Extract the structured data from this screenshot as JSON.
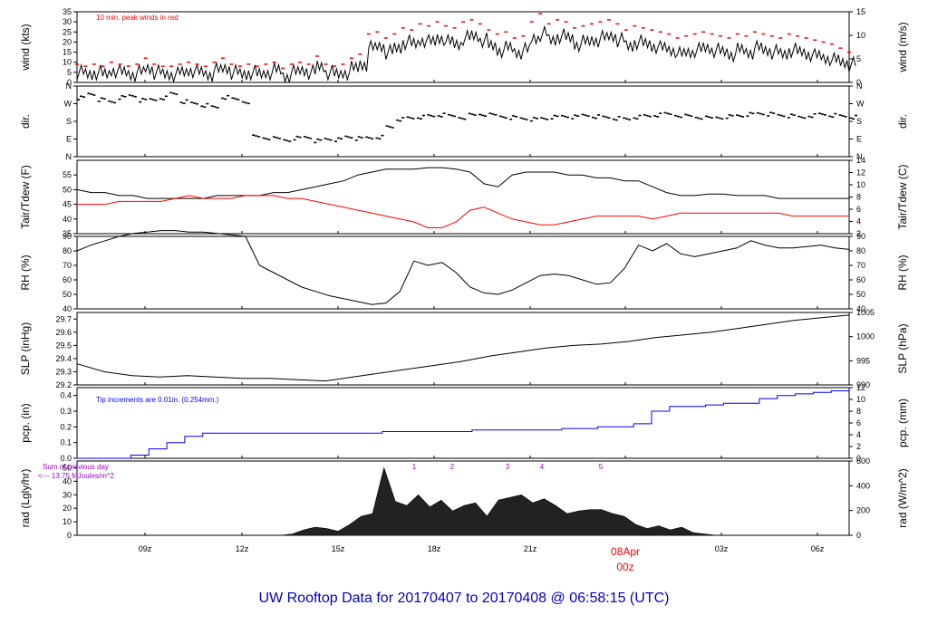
{
  "title": "UW Rooftop Data for 20170407  to  20170408 @ 06:58:15  (UTC)",
  "colors": {
    "main": "#000000",
    "red": "#ff0000",
    "blue": "#0000ff",
    "purple": "#9900cc",
    "title": "#0000cc"
  },
  "x_axis": {
    "ticks": [
      "09z",
      "12z",
      "15z",
      "18z",
      "21z",
      "00z",
      "03z",
      "06z"
    ],
    "day_label": "08Apr",
    "midnight_label": "00z"
  },
  "chart_data": [
    {
      "type": "line",
      "id": "wind",
      "ylabel": "wind (kts)",
      "ylabel_right": "wind (m/s)",
      "ylim": [
        0,
        35
      ],
      "yticks": [
        "0",
        "5",
        "10",
        "15",
        "20",
        "25",
        "30",
        "35"
      ],
      "yticks_right": [
        "0",
        "5",
        "10",
        "15"
      ],
      "annotation": "10 min. peak winds in red",
      "series": [
        {
          "values": [
            5,
            4,
            5,
            4,
            6,
            5,
            4,
            5,
            7,
            5,
            4,
            4,
            5,
            6,
            5,
            4,
            6,
            7,
            5,
            4,
            5,
            4,
            5,
            6,
            3,
            5,
            6,
            5,
            8,
            5,
            4,
            5,
            7,
            9,
            17,
            18,
            15,
            17,
            20,
            19,
            21,
            20,
            22,
            20,
            19,
            22,
            23,
            21,
            18,
            16,
            17,
            15,
            16,
            22,
            24,
            21,
            23,
            22,
            19,
            20,
            21,
            22,
            23,
            21,
            18,
            20,
            19,
            18,
            17,
            16,
            14,
            15,
            16,
            17,
            16,
            15,
            14,
            16,
            15,
            17,
            16,
            15,
            14,
            16,
            15,
            14,
            13,
            12,
            11,
            10,
            9
          ]
        },
        {
          "values": [
            9,
            8,
            9,
            8,
            10,
            9,
            8,
            9,
            12,
            9,
            8,
            8,
            9,
            10,
            9,
            8,
            10,
            12,
            9,
            8,
            9,
            8,
            9,
            10,
            7,
            9,
            10,
            9,
            13,
            9,
            8,
            9,
            12,
            14,
            24,
            25,
            22,
            24,
            27,
            26,
            29,
            28,
            30,
            28,
            27,
            30,
            31,
            29,
            26,
            24,
            25,
            22,
            23,
            30,
            34,
            29,
            31,
            30,
            27,
            28,
            29,
            30,
            31,
            29,
            26,
            28,
            27,
            26,
            25,
            24,
            22,
            23,
            24,
            25,
            24,
            23,
            22,
            24,
            23,
            25,
            24,
            23,
            22,
            24,
            23,
            22,
            21,
            20,
            19,
            17,
            15
          ]
        }
      ]
    },
    {
      "type": "scatter",
      "id": "dir",
      "ylabel": "dir.",
      "ylabel_right": "dir.",
      "yticks": [
        "N",
        "E",
        "S",
        "W",
        "N"
      ],
      "yticks_right": [
        "N",
        "E",
        "S",
        "W",
        "N"
      ],
      "series": [
        {
          "values": [
            300,
            320,
            290,
            280,
            300,
            310,
            285,
            290,
            300,
            320,
            280,
            270,
            260,
            250,
            300,
            290,
            280,
            100,
            95,
            90,
            85,
            95,
            100,
            80,
            90,
            85,
            100,
            90,
            95,
            100,
            150,
            190,
            195,
            200,
            205,
            210,
            205,
            200,
            210,
            215,
            210,
            205,
            200,
            195,
            190,
            195,
            200,
            205,
            200,
            210,
            205,
            200,
            195,
            190,
            200,
            205,
            210,
            215,
            210,
            205,
            200,
            195,
            200,
            205,
            210,
            215,
            220,
            215,
            210,
            205,
            200,
            210,
            215,
            210,
            205,
            200
          ]
        }
      ]
    },
    {
      "type": "line",
      "id": "temp",
      "ylabel": "Tair/Tdew (F)",
      "ylabel_right": "Tair/Tdew (C)",
      "ylim": [
        35,
        60
      ],
      "yticks": [
        "35",
        "40",
        "45",
        "50",
        "55"
      ],
      "yticks_right": [
        "2",
        "4",
        "6",
        "8",
        "10",
        "12",
        "14"
      ],
      "series": [
        {
          "values": [
            50,
            49,
            49,
            48,
            48,
            47,
            47,
            47,
            47,
            47,
            48,
            48,
            48,
            48,
            49,
            49,
            50,
            51,
            52,
            53,
            55,
            56,
            57,
            57,
            57,
            57.5,
            57.5,
            57,
            56,
            52,
            51,
            55,
            56,
            56,
            56,
            55,
            55,
            54,
            54,
            53,
            53,
            51,
            49,
            48,
            48,
            48.5,
            48.5,
            48,
            48,
            48,
            47,
            47,
            47,
            47,
            47,
            47
          ]
        },
        {
          "values": [
            45,
            45,
            45,
            46,
            46,
            46,
            46,
            47,
            48,
            47,
            47,
            47,
            48,
            48,
            48,
            47,
            47,
            46,
            45,
            44,
            43,
            42,
            41,
            40,
            39,
            37,
            37,
            39,
            43,
            44,
            42,
            40,
            39,
            38,
            38,
            39,
            40,
            41,
            41,
            41,
            41,
            40,
            41,
            42,
            42,
            42,
            42,
            42,
            42,
            42,
            42,
            41,
            41,
            41,
            41,
            41
          ]
        }
      ]
    },
    {
      "type": "line",
      "id": "rh",
      "ylabel": "RH (%)",
      "ylabel_right": "RH (%)",
      "ylim": [
        40,
        90
      ],
      "yticks": [
        "40",
        "50",
        "60",
        "70",
        "80",
        "90"
      ],
      "yticks_right": [
        "40",
        "50",
        "60",
        "70",
        "80",
        "90"
      ],
      "series": [
        {
          "values": [
            80,
            84,
            87,
            90,
            92,
            93,
            94,
            94,
            93,
            93,
            92,
            91,
            90,
            70,
            65,
            60,
            55,
            52,
            49,
            47,
            45,
            43,
            44,
            52,
            73,
            70,
            72,
            65,
            55,
            51,
            50,
            53,
            58,
            63,
            64,
            63,
            60,
            57,
            58,
            68,
            84,
            80,
            85,
            78,
            76,
            78,
            80,
            82,
            87,
            84,
            82,
            82,
            83,
            84,
            82,
            81
          ]
        }
      ]
    },
    {
      "type": "line",
      "id": "slp",
      "ylabel": "SLP (inHg)",
      "ylabel_right": "SLP (hPa)",
      "ylim": [
        29.2,
        29.75
      ],
      "yticks": [
        "29.2",
        "29.3",
        "29.4",
        "29.5",
        "29.6",
        "29.7"
      ],
      "yticks_right": [
        "990",
        "995",
        "1000",
        "1005"
      ],
      "series": [
        {
          "values": [
            29.36,
            29.3,
            29.27,
            29.26,
            29.27,
            29.26,
            29.25,
            29.25,
            29.24,
            29.23,
            29.26,
            29.29,
            29.32,
            29.35,
            29.38,
            29.42,
            29.45,
            29.48,
            29.5,
            29.51,
            29.53,
            29.56,
            29.58,
            29.6,
            29.63,
            29.66,
            29.69,
            29.71,
            29.73
          ]
        }
      ]
    },
    {
      "type": "line",
      "id": "pcp",
      "ylabel": "pcp. (in)",
      "ylabel_right": "pcp. (mm)",
      "ylim": [
        0,
        0.45
      ],
      "yticks": [
        "0.0",
        "0.1",
        "0.2",
        "0.3",
        "0.4"
      ],
      "yticks_right": [
        "0",
        "2",
        "4",
        "6",
        "8",
        "10",
        "12"
      ],
      "annotation": "Tip increments are 0.01in. (0.254mm.)",
      "series": [
        {
          "values": [
            0,
            0,
            0,
            0.02,
            0.06,
            0.1,
            0.14,
            0.16,
            0.16,
            0.16,
            0.16,
            0.16,
            0.16,
            0.16,
            0.16,
            0.16,
            0.16,
            0.17,
            0.17,
            0.17,
            0.17,
            0.17,
            0.18,
            0.18,
            0.18,
            0.18,
            0.18,
            0.19,
            0.19,
            0.2,
            0.2,
            0.22,
            0.3,
            0.33,
            0.33,
            0.34,
            0.35,
            0.35,
            0.38,
            0.4,
            0.41,
            0.42,
            0.43,
            0.43
          ]
        }
      ]
    },
    {
      "type": "area",
      "id": "rad",
      "ylabel": "rad (Lgly/hr)",
      "ylabel_right": "rad (W/m^2)",
      "ylim": [
        0,
        55
      ],
      "yticks": [
        "0",
        "10",
        "20",
        "30",
        "40",
        "50"
      ],
      "yticks_right": [
        "0",
        "200",
        "400",
        "600"
      ],
      "annotation": "Sum of previous day",
      "annotation2": "<--- 13.75 MJoules/m^2",
      "markers": [
        "1",
        "2",
        "3",
        "4",
        "5"
      ],
      "series": [
        {
          "values": [
            0,
            1,
            4,
            6,
            5,
            3,
            8,
            14,
            16,
            50,
            25,
            22,
            30,
            21,
            26,
            18,
            22,
            24,
            14,
            26,
            28,
            30,
            24,
            27,
            22,
            16,
            18,
            19,
            19,
            16,
            14,
            8,
            5,
            7,
            4,
            6,
            2,
            1,
            0
          ]
        }
      ]
    }
  ]
}
